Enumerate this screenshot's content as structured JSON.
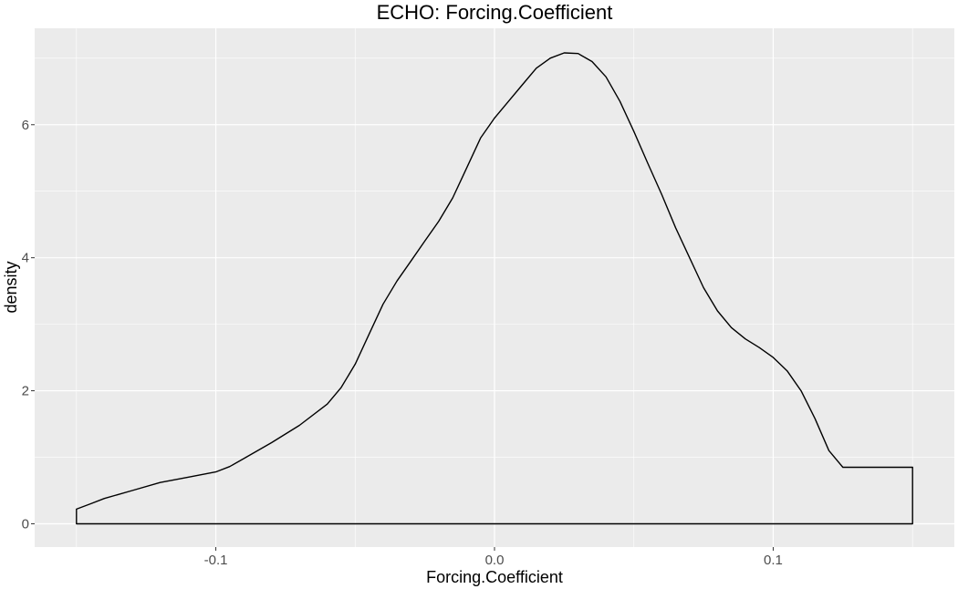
{
  "chart_data": {
    "type": "area",
    "title": "ECHO: Forcing.Coefficient",
    "xlabel": "Forcing.Coefficient",
    "ylabel": "density",
    "xlim": [
      -0.165,
      0.165
    ],
    "ylim": [
      -0.35,
      7.45
    ],
    "x_ticks": [
      {
        "value": -0.1,
        "label": "-0.1"
      },
      {
        "value": 0.0,
        "label": "0.0"
      },
      {
        "value": 0.1,
        "label": "0.1"
      }
    ],
    "y_ticks": [
      {
        "value": 0,
        "label": "0"
      },
      {
        "value": 2,
        "label": "2"
      },
      {
        "value": 4,
        "label": "4"
      },
      {
        "value": 6,
        "label": "6"
      }
    ],
    "x_minor_breaks": [
      -0.15,
      -0.05,
      0.05,
      0.15
    ],
    "y_minor_breaks": [
      1,
      3,
      5,
      7
    ],
    "grid": true,
    "fill": "none",
    "line_color": "#000000",
    "panel_background": "#EBEBEB",
    "grid_color": "#FFFFFF",
    "series": [
      {
        "x": [
          -0.15,
          -0.145,
          -0.14,
          -0.13,
          -0.12,
          -0.11,
          -0.1,
          -0.095,
          -0.09,
          -0.08,
          -0.07,
          -0.06,
          -0.055,
          -0.05,
          -0.045,
          -0.04,
          -0.035,
          -0.03,
          -0.025,
          -0.02,
          -0.015,
          -0.01,
          -0.005,
          0.0,
          0.005,
          0.01,
          0.015,
          0.02,
          0.025,
          0.03,
          0.035,
          0.04,
          0.045,
          0.05,
          0.055,
          0.06,
          0.065,
          0.07,
          0.075,
          0.08,
          0.085,
          0.09,
          0.095,
          0.1,
          0.105,
          0.11,
          0.115,
          0.12,
          0.125,
          0.13,
          0.135,
          0.14,
          0.145,
          0.15
        ],
        "y": [
          0.22,
          0.3,
          0.38,
          0.5,
          0.62,
          0.7,
          0.78,
          0.86,
          0.98,
          1.22,
          1.48,
          1.8,
          2.05,
          2.4,
          2.85,
          3.3,
          3.65,
          3.95,
          4.25,
          4.55,
          4.9,
          5.35,
          5.8,
          6.1,
          6.35,
          6.6,
          6.85,
          7.0,
          7.08,
          7.07,
          6.95,
          6.72,
          6.35,
          5.9,
          5.42,
          4.95,
          4.45,
          4.0,
          3.55,
          3.2,
          2.95,
          2.78,
          2.65,
          2.5,
          2.3,
          2.0,
          1.58,
          1.1,
          0.85,
          0.85,
          0.85,
          0.85,
          0.85,
          0.85
        ]
      }
    ]
  }
}
